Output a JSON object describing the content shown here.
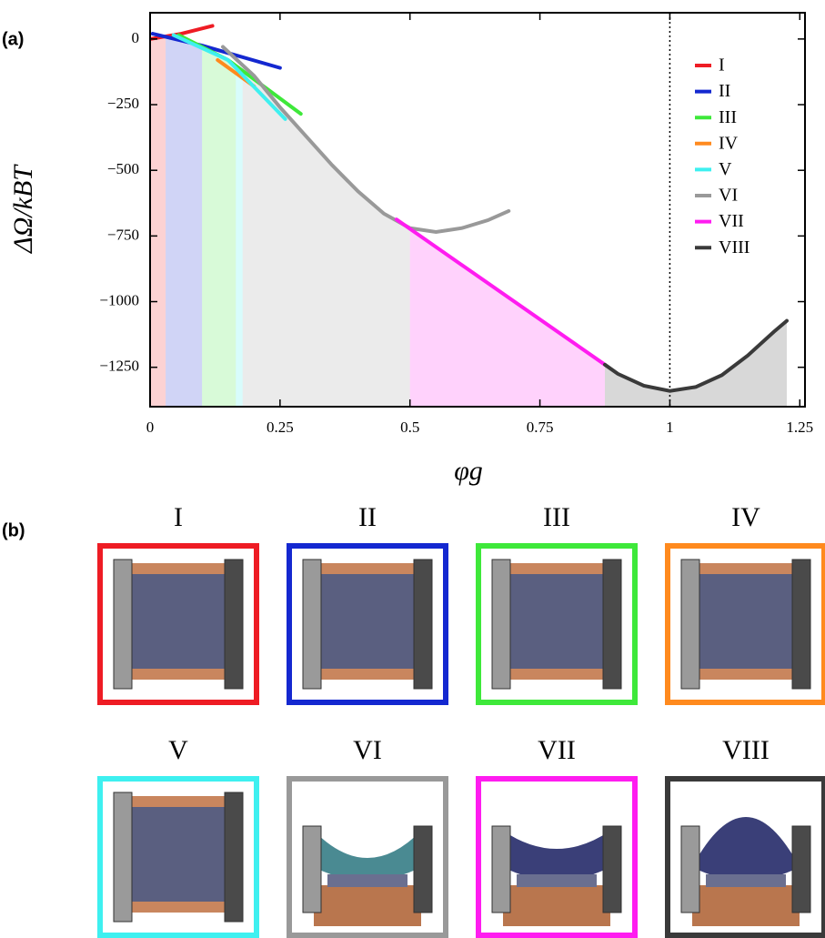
{
  "chart_data": {
    "type": "line",
    "panel_label": "(a)",
    "x_label": "φg",
    "y_label": "ΔΩ/kBT",
    "xlim": [
      0,
      1.26
    ],
    "ylim": [
      -1400,
      100
    ],
    "xticks": [
      0,
      0.25,
      0.5,
      0.75,
      1,
      1.25
    ],
    "yticks": [
      0,
      {
        "value": -250,
        "label": "−250"
      },
      {
        "value": -500,
        "label": "−500"
      },
      {
        "value": -750,
        "label": "−750"
      },
      {
        "value": -1000,
        "label": "−1000"
      },
      {
        "value": -1250,
        "label": "−1250"
      }
    ],
    "vline": 1,
    "legend": "upper right",
    "series": [
      {
        "name": "I",
        "color": "#ee1c24",
        "x": [
          0,
          0.06,
          0.12
        ],
        "values": [
          0,
          20,
          50
        ],
        "stable_range": [
          0,
          0.03
        ]
      },
      {
        "name": "II",
        "color": "#1428d0",
        "x": [
          0.005,
          0.1,
          0.25
        ],
        "values": [
          20,
          -25,
          -110
        ],
        "stable_range": [
          0.03,
          0.1
        ]
      },
      {
        "name": "III",
        "color": "#3ee83a",
        "x": [
          0.055,
          0.15,
          0.29
        ],
        "values": [
          15,
          -80,
          -285
        ],
        "stable_range": [
          0.1,
          0.165
        ]
      },
      {
        "name": "IV",
        "color": "#ff8a1e",
        "x": [
          0.13,
          0.2
        ],
        "values": [
          -80,
          -180
        ]
      },
      {
        "name": "V",
        "color": "#3ef0f0",
        "x": [
          0.045,
          0.15,
          0.26
        ],
        "values": [
          15,
          -80,
          -305
        ],
        "stable_range": [
          0.165,
          0.178
        ]
      },
      {
        "name": "VI",
        "color": "#999999",
        "x": [
          0.14,
          0.2,
          0.25,
          0.3,
          0.35,
          0.4,
          0.45,
          0.5,
          0.55,
          0.6,
          0.65,
          0.69
        ],
        "values": [
          -30,
          -140,
          -260,
          -370,
          -480,
          -580,
          -665,
          -720,
          -735,
          -720,
          -690,
          -655
        ],
        "stable_range": [
          0.178,
          0.5
        ]
      },
      {
        "name": "VII",
        "color": "#ff1cf0",
        "x": [
          0.474,
          0.875
        ],
        "values": [
          -687,
          -1240
        ],
        "stable_range": [
          0.5,
          0.875
        ]
      },
      {
        "name": "VIII",
        "color": "#3a3a3a",
        "x": [
          0.875,
          0.9,
          0.95,
          1.0,
          1.05,
          1.1,
          1.15,
          1.2,
          1.225
        ],
        "values": [
          -1240,
          -1275,
          -1320,
          -1340,
          -1325,
          -1280,
          -1205,
          -1115,
          -1073
        ],
        "stable_range": [
          0.875,
          1.225
        ]
      }
    ]
  },
  "panel_b": {
    "label": "(b)"
  }
}
